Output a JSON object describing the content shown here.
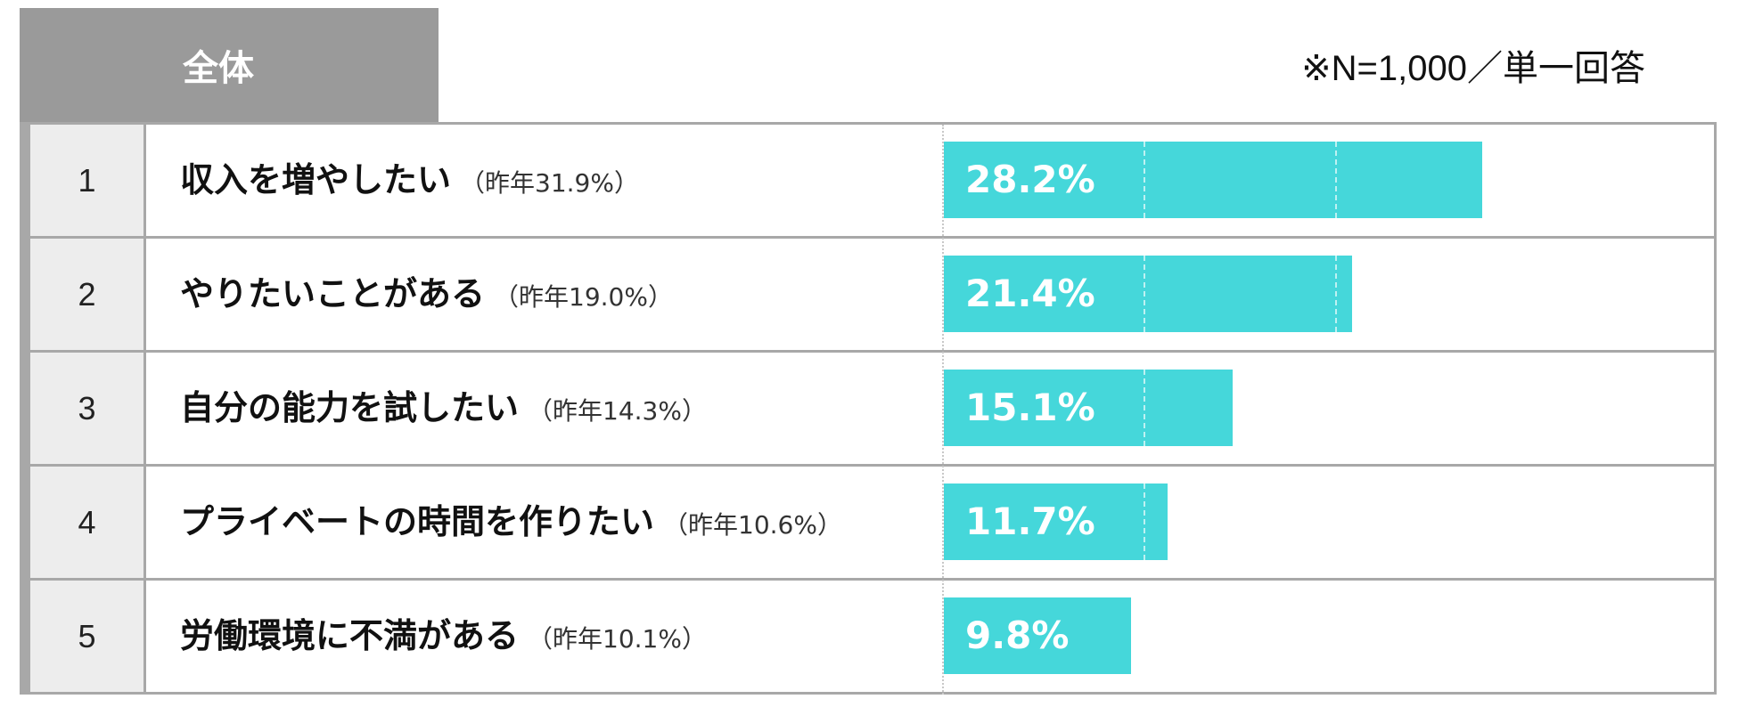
{
  "header": {
    "title": "全体"
  },
  "note": "※N=1,000／単一回答",
  "chart_data": {
    "type": "bar",
    "orientation": "horizontal",
    "title": "全体",
    "categories": [
      "収入を増やしたい",
      "やりたいことがある",
      "自分の能力を試したい",
      "プライベートの時間を作りたい",
      "労働環境に不満がある"
    ],
    "ranks": [
      "1",
      "2",
      "3",
      "4",
      "5"
    ],
    "prev_year_labels": [
      "（昨年31.9%）",
      "（昨年19.0%）",
      "（昨年14.3%）",
      "（昨年10.6%）",
      "（昨年10.1%）"
    ],
    "series": [
      {
        "values": [
          28.2,
          21.4,
          15.1,
          11.7,
          9.8
        ]
      }
    ],
    "value_labels": [
      "28.2%",
      "21.4%",
      "15.1%",
      "11.7%",
      "9.8%"
    ],
    "prev_year_values": [
      31.9,
      19.0,
      14.3,
      10.6,
      10.1
    ],
    "xlim": [
      0,
      40
    ],
    "unit": "%",
    "grid": true,
    "bar_color": "#45d7da"
  },
  "colors": {
    "header_bg": "#9a9a9a",
    "rank_bg": "#ededed",
    "border": "#a8a8a8",
    "bar": "#45d7da"
  }
}
